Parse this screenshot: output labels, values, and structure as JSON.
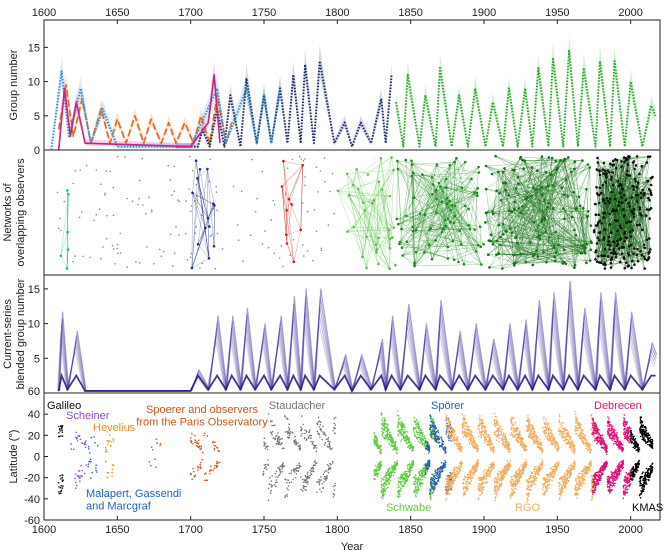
{
  "chart_data": [
    {
      "panel": "group-number",
      "type": "line",
      "ylabel": "Group number",
      "xlim": [
        1600,
        2020
      ],
      "ylim": [
        0,
        19
      ],
      "xticks": [
        1600,
        1650,
        1700,
        1750,
        1800,
        1850,
        1900,
        1950,
        2000
      ],
      "yticks": [
        0,
        5,
        10,
        15
      ],
      "x_top_axis": true,
      "series": [
        {
          "color": "#e0691a",
          "style": "dashed",
          "points": [
            [
              1610,
              3
            ],
            [
              1615,
              9.5
            ],
            [
              1620,
              2
            ],
            [
              1626,
              7.5
            ],
            [
              1632,
              1
            ],
            [
              1639,
              6
            ],
            [
              1645,
              1
            ],
            [
              1650,
              4.5
            ],
            [
              1656,
              1
            ],
            [
              1662,
              5
            ],
            [
              1668,
              1
            ],
            [
              1673,
              4.5
            ],
            [
              1680,
              1
            ],
            [
              1685,
              4
            ],
            [
              1690,
              1
            ],
            [
              1696,
              4
            ],
            [
              1702,
              1
            ],
            [
              1707,
              5
            ],
            [
              1713,
              1
            ],
            [
              1718,
              8
            ],
            [
              1724,
              1
            ],
            [
              1728,
              4
            ]
          ]
        },
        {
          "color": "#1a2a66",
          "style": "dotted",
          "points": [
            [
              1690,
              0.5
            ],
            [
              1705,
              0.5
            ],
            [
              1708,
              3
            ],
            [
              1713,
              0.5
            ],
            [
              1718,
              6
            ],
            [
              1723,
              0.5
            ],
            [
              1727,
              8
            ],
            [
              1734,
              0.5
            ],
            [
              1738,
              10.5
            ],
            [
              1745,
              1
            ],
            [
              1750,
              8
            ],
            [
              1755,
              1
            ],
            [
              1761,
              9
            ],
            [
              1766,
              1
            ],
            [
              1770,
              11
            ],
            [
              1775,
              1
            ],
            [
              1778,
              12.5
            ],
            [
              1784,
              1
            ],
            [
              1788,
              13
            ],
            [
              1798,
              1
            ],
            [
              1805,
              4
            ],
            [
              1810,
              0.5
            ],
            [
              1816,
              4
            ],
            [
              1823,
              1
            ],
            [
              1830,
              7.5
            ],
            [
              1833,
              1
            ],
            [
              1837,
              11
            ]
          ]
        },
        {
          "color": "#3a8fd0",
          "style": "dotted",
          "points": [
            [
              1605,
              0
            ],
            [
              1612,
              11.5
            ],
            [
              1617,
              2
            ],
            [
              1625,
              9
            ],
            [
              1632,
              1
            ],
            [
              1640,
              6
            ],
            [
              1650,
              0.5
            ],
            [
              1700,
              0.5
            ],
            [
              1718,
              9
            ],
            [
              1724,
              1
            ],
            [
              1738,
              9
            ],
            [
              1745,
              1
            ],
            [
              1750,
              8
            ],
            [
              1755,
              1
            ],
            [
              1761,
              9
            ]
          ]
        },
        {
          "color": "#cc2288",
          "style": "solid",
          "points": [
            [
              1610,
              0
            ],
            [
              1614,
              9
            ],
            [
              1618,
              2
            ],
            [
              1622,
              7
            ],
            [
              1628,
              1
            ],
            [
              1700,
              0.5
            ],
            [
              1712,
              4
            ],
            [
              1716,
              11
            ],
            [
              1720,
              1
            ]
          ]
        },
        {
          "color": "#2aa82a",
          "style": "dotted",
          "points": [
            [
              1840,
              7
            ],
            [
              1845,
              0.5
            ],
            [
              1848,
              11
            ],
            [
              1856,
              0.5
            ],
            [
              1860,
              8
            ],
            [
              1867,
              0.5
            ],
            [
              1870,
              12
            ],
            [
              1878,
              0.5
            ],
            [
              1883,
              8
            ],
            [
              1889,
              0.5
            ],
            [
              1894,
              9
            ],
            [
              1901,
              0.5
            ],
            [
              1906,
              7
            ],
            [
              1913,
              0.5
            ],
            [
              1917,
              9
            ],
            [
              1923,
              0.5
            ],
            [
              1928,
              9
            ],
            [
              1933,
              0.5
            ],
            [
              1937,
              12
            ],
            [
              1944,
              0.5
            ],
            [
              1947,
              13.5
            ],
            [
              1954,
              0.5
            ],
            [
              1958,
              14.5
            ],
            [
              1964,
              0.5
            ],
            [
              1968,
              12
            ],
            [
              1976,
              0.5
            ],
            [
              1979,
              13
            ],
            [
              1986,
              0.5
            ],
            [
              1989,
              13
            ],
            [
              1996,
              0.5
            ],
            [
              2000,
              10
            ],
            [
              2008,
              0.5
            ],
            [
              2014,
              6.5
            ],
            [
              2017,
              5
            ]
          ]
        }
      ]
    },
    {
      "panel": "networks",
      "type": "scatter",
      "ylabel": "Networks of\noverlapping observers",
      "xlim": [
        1600,
        2020
      ],
      "clusters": [
        {
          "color": "#1bb6a6",
          "x": [
            1610,
            1619
          ],
          "density": 6
        },
        {
          "color": "#888888",
          "x": [
            1608,
            1745
          ],
          "density": 110
        },
        {
          "color": "#1e2a8a",
          "x": [
            1700,
            1720
          ],
          "density": 14
        },
        {
          "color": "#d21c1c",
          "x": [
            1762,
            1778
          ],
          "density": 10
        },
        {
          "color": "#888888",
          "x": [
            1745,
            1800
          ],
          "density": 45
        },
        {
          "color": "#5cc04a",
          "x": [
            1800,
            1840
          ],
          "density": 35
        },
        {
          "color": "#1f8a1f",
          "x": [
            1840,
            1900
          ],
          "density": 90
        },
        {
          "color": "#187318",
          "x": [
            1900,
            1975
          ],
          "density": 160
        },
        {
          "color": "#0d5c0d",
          "x": [
            1975,
            2015
          ],
          "density": 260
        }
      ]
    },
    {
      "panel": "blended",
      "type": "line",
      "ylabel": "Current-series\nblended group number",
      "xlim": [
        1600,
        2020
      ],
      "ylim": [
        0,
        17
      ],
      "yticks": [
        5,
        10,
        15
      ],
      "y0_label": "60",
      "color": "#3b2c9c",
      "points": [
        [
          1610,
          0.3
        ],
        [
          1612,
          10.5
        ],
        [
          1616,
          0.5
        ],
        [
          1622,
          8
        ],
        [
          1628,
          0.3
        ],
        [
          1650,
          0.3
        ],
        [
          1690,
          0.3
        ],
        [
          1700,
          0.3
        ],
        [
          1705,
          3
        ],
        [
          1712,
          0.5
        ],
        [
          1718,
          10
        ],
        [
          1724,
          0.5
        ],
        [
          1728,
          10
        ],
        [
          1734,
          0.5
        ],
        [
          1738,
          11
        ],
        [
          1744,
          0.5
        ],
        [
          1750,
          9
        ],
        [
          1755,
          0.5
        ],
        [
          1761,
          10
        ],
        [
          1766,
          0.5
        ],
        [
          1770,
          12.5
        ],
        [
          1775,
          0.5
        ],
        [
          1778,
          13.5
        ],
        [
          1784,
          0.5
        ],
        [
          1788,
          13.5
        ],
        [
          1798,
          0.5
        ],
        [
          1805,
          5
        ],
        [
          1810,
          0.3
        ],
        [
          1816,
          5
        ],
        [
          1823,
          0.5
        ],
        [
          1830,
          7
        ],
        [
          1833,
          0.5
        ],
        [
          1837,
          10
        ],
        [
          1843,
          0.5
        ],
        [
          1848,
          11.5
        ],
        [
          1856,
          0.5
        ],
        [
          1860,
          9
        ],
        [
          1867,
          0.5
        ],
        [
          1870,
          12
        ],
        [
          1878,
          0.5
        ],
        [
          1883,
          8
        ],
        [
          1889,
          0.5
        ],
        [
          1894,
          9
        ],
        [
          1901,
          0.5
        ],
        [
          1906,
          7
        ],
        [
          1913,
          0.5
        ],
        [
          1917,
          9
        ],
        [
          1923,
          0.5
        ],
        [
          1928,
          9.5
        ],
        [
          1933,
          0.5
        ],
        [
          1937,
          12
        ],
        [
          1944,
          0.5
        ],
        [
          1947,
          13
        ],
        [
          1954,
          0.5
        ],
        [
          1958,
          14.5
        ],
        [
          1964,
          0.5
        ],
        [
          1968,
          11
        ],
        [
          1976,
          0.5
        ],
        [
          1979,
          13
        ],
        [
          1986,
          0.5
        ],
        [
          1989,
          13
        ],
        [
          1996,
          0.5
        ],
        [
          2000,
          10.5
        ],
        [
          2008,
          0.5
        ],
        [
          2014,
          6.5
        ],
        [
          2017,
          5
        ]
      ]
    },
    {
      "panel": "latitude",
      "type": "scatter",
      "ylabel": "Latitude (°)",
      "xlabel": "Year",
      "xlim": [
        1600,
        2020
      ],
      "ylim": [
        -60,
        60
      ],
      "yticks": [
        -60,
        -40,
        -20,
        0,
        20,
        40
      ],
      "xticks": [
        1600,
        1650,
        1700,
        1750,
        1800,
        1850,
        1900,
        1950,
        2000
      ],
      "observers": [
        {
          "label": "Galileo",
          "color": "#111111"
        },
        {
          "label": "Scheiner",
          "color": "#8e4fc8"
        },
        {
          "label": "Hevelius",
          "color": "#e8901f"
        },
        {
          "label": "Malapert, Gassendi\nand Marcgraf",
          "color": "#1c64b8"
        },
        {
          "label": "Spoerer and observers\nfrom the Paris Observatory",
          "color": "#c9561c"
        },
        {
          "label": "Staudacher",
          "color": "#777777"
        },
        {
          "label": "Schwabe",
          "color": "#66c84a"
        },
        {
          "label": "Spörer",
          "color": "#2c62a8"
        },
        {
          "label": "RGO",
          "color": "#f2ad62"
        },
        {
          "label": "Debrecen",
          "color": "#e0127a"
        },
        {
          "label": "KMAS",
          "color": "#000000"
        }
      ],
      "clusters": [
        {
          "color": "#111111",
          "x": [
            1610,
            1613
          ],
          "spread": 38,
          "n": 40
        },
        {
          "color": "#8e4fc8",
          "x": [
            1618,
            1629
          ],
          "spread": 32,
          "n": 40
        },
        {
          "color": "#1c64b8",
          "x": [
            1630,
            1637
          ],
          "spread": 25,
          "n": 20
        },
        {
          "color": "#e8901f",
          "x": [
            1642,
            1648
          ],
          "spread": 24,
          "n": 25
        },
        {
          "color": "#c9561c",
          "x": [
            1670,
            1680
          ],
          "spread": 22,
          "n": 10
        },
        {
          "color": "#c9561c",
          "x": [
            1700,
            1720
          ],
          "spread": 30,
          "n": 80
        },
        {
          "color": "#777777",
          "x": [
            1749,
            1799
          ],
          "spread": 42,
          "n": 400
        },
        {
          "color": "#66c84a",
          "x": [
            1825,
            1867
          ],
          "spread": 42,
          "n": 1100
        },
        {
          "color": "#2c62a8",
          "x": [
            1860,
            1878
          ],
          "spread": 40,
          "n": 400
        },
        {
          "color": "#f2ad62",
          "x": [
            1874,
            1976
          ],
          "spread": 42,
          "n": 2600
        },
        {
          "color": "#e0127a",
          "x": [
            1974,
            2000
          ],
          "spread": 40,
          "n": 900
        },
        {
          "color": "#000000",
          "x": [
            2000,
            2015
          ],
          "spread": 40,
          "n": 500
        }
      ]
    }
  ]
}
